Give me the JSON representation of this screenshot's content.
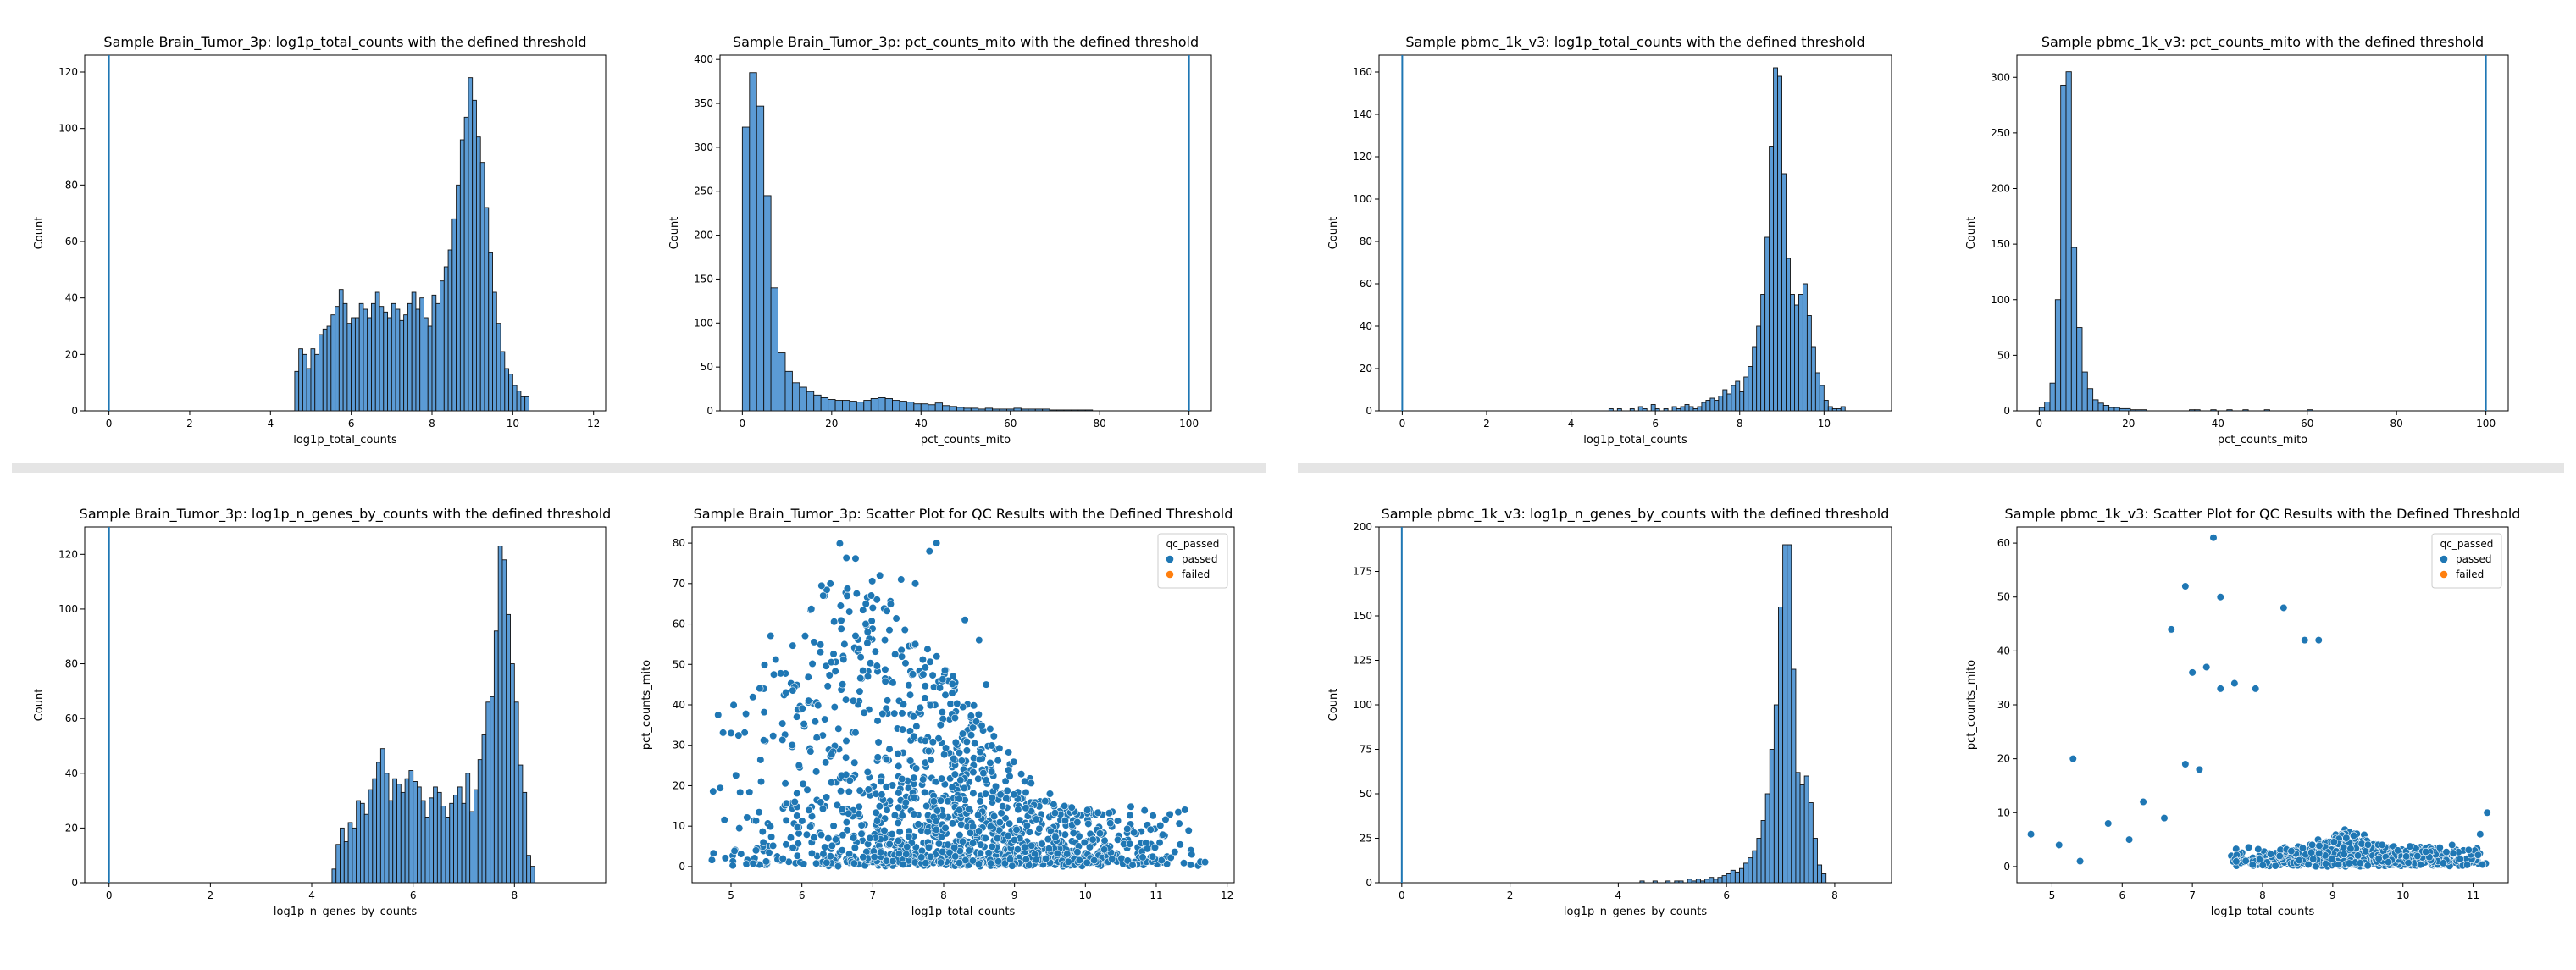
{
  "chart_data": [
    {
      "id": "c1",
      "type": "bar",
      "title": "Sample Brain_Tumor_3p: log1p_total_counts with the defined threshold",
      "xlabel": "log1p_total_counts",
      "ylabel": "Count",
      "xlim": [
        -0.6,
        12.3
      ],
      "ylim": [
        0,
        126
      ],
      "xticks": [
        0,
        2,
        4,
        6,
        8,
        10,
        12
      ],
      "yticks": [
        0,
        20,
        40,
        60,
        80,
        100,
        120
      ],
      "threshold": 0,
      "bins": {
        "start": 4.6,
        "width": 0.1
      },
      "values": [
        14,
        22,
        20,
        15,
        22,
        20,
        27,
        29,
        30,
        34,
        37,
        43,
        38,
        31,
        33,
        33,
        38,
        36,
        33,
        38,
        42,
        37,
        35,
        33,
        38,
        36,
        32,
        34,
        38,
        42,
        36,
        40,
        33,
        30,
        41,
        38,
        46,
        51,
        57,
        68,
        80,
        96,
        104,
        118,
        110,
        97,
        88,
        72,
        56,
        42,
        31,
        21,
        15,
        13,
        9,
        7,
        5,
        5
      ]
    },
    {
      "id": "c2",
      "type": "bar",
      "title": "Sample Brain_Tumor_3p: pct_counts_mito with the defined threshold",
      "xlabel": "pct_counts_mito",
      "ylabel": "Count",
      "xlim": [
        -5,
        105
      ],
      "ylim": [
        0,
        405
      ],
      "xticks": [
        0,
        20,
        40,
        60,
        80,
        100
      ],
      "yticks": [
        0,
        50,
        100,
        150,
        200,
        250,
        300,
        350,
        400
      ],
      "threshold": 100,
      "bins": {
        "start": 0,
        "width": 1.6
      },
      "values": [
        323,
        385,
        347,
        245,
        140,
        66,
        45,
        32,
        27,
        22,
        18,
        15,
        13,
        12,
        12,
        11,
        10,
        12,
        14,
        15,
        14,
        12,
        11,
        10,
        8,
        8,
        7,
        9,
        6,
        5,
        4,
        3,
        3,
        2,
        3,
        2,
        2,
        2,
        3,
        2,
        2,
        2,
        2,
        1,
        1,
        1,
        1,
        1,
        1
      ]
    },
    {
      "id": "c3",
      "type": "bar",
      "title": "Sample pbmc_1k_v3: log1p_total_counts with the defined threshold",
      "xlabel": "log1p_total_counts",
      "ylabel": "Count",
      "xlim": [
        -0.55,
        11.6
      ],
      "ylim": [
        0,
        168
      ],
      "xticks": [
        0,
        2,
        4,
        6,
        8,
        10
      ],
      "yticks": [
        0,
        20,
        40,
        60,
        80,
        100,
        120,
        140,
        160
      ],
      "threshold": 0,
      "bins": {
        "start": 4.9,
        "width": 0.1
      },
      "values": [
        1,
        0,
        1,
        0,
        0,
        1,
        0,
        2,
        1,
        0,
        3,
        1,
        0,
        1,
        0,
        2,
        1,
        2,
        3,
        2,
        1,
        2,
        4,
        5,
        6,
        5,
        7,
        10,
        8,
        12,
        14,
        9,
        16,
        21,
        30,
        40,
        55,
        82,
        125,
        162,
        158,
        112,
        72,
        55,
        50,
        55,
        60,
        45,
        30,
        18,
        12,
        5,
        2,
        1,
        1,
        2
      ]
    },
    {
      "id": "c4",
      "type": "bar",
      "title": "Sample pbmc_1k_v3: pct_counts_mito with the defined threshold",
      "xlabel": "pct_counts_mito",
      "ylabel": "Count",
      "xlim": [
        -5,
        105
      ],
      "ylim": [
        0,
        320
      ],
      "xticks": [
        0,
        20,
        40,
        60,
        80,
        100
      ],
      "yticks": [
        0,
        50,
        100,
        150,
        200,
        250,
        300
      ],
      "threshold": 100,
      "bins": {
        "start": 0,
        "width": 1.2
      },
      "values": [
        3,
        8,
        25,
        100,
        293,
        305,
        147,
        75,
        35,
        20,
        10,
        7,
        5,
        3,
        3,
        2,
        2,
        1,
        1,
        1,
        0,
        0,
        0,
        0,
        0,
        0,
        0,
        0,
        1,
        1,
        0,
        0,
        1,
        0,
        0,
        1,
        0,
        0,
        1,
        0,
        0,
        0,
        1,
        0,
        0,
        0,
        0,
        0,
        0,
        0,
        1
      ]
    },
    {
      "id": "c5",
      "type": "bar",
      "title": "Sample Brain_Tumor_3p: log1p_n_genes_by_counts with the defined threshold",
      "xlabel": "log1p_n_genes_by_counts",
      "ylabel": "Count",
      "xlim": [
        -0.48,
        9.8
      ],
      "ylim": [
        0,
        130
      ],
      "xticks": [
        0,
        2,
        4,
        6,
        8
      ],
      "yticks": [
        0,
        20,
        40,
        60,
        80,
        100,
        120
      ],
      "threshold": 0,
      "bins": {
        "start": 4.4,
        "width": 0.08
      },
      "values": [
        5,
        14,
        20,
        15,
        22,
        20,
        30,
        29,
        25,
        34,
        38,
        44,
        49,
        40,
        30,
        38,
        36,
        33,
        38,
        41,
        37,
        35,
        30,
        24,
        31,
        35,
        33,
        28,
        24,
        29,
        32,
        35,
        29,
        40,
        26,
        34,
        45,
        54,
        66,
        68,
        92,
        123,
        118,
        98,
        80,
        66,
        43,
        33,
        10,
        6
      ]
    },
    {
      "id": "c6",
      "type": "scatter",
      "title": "Sample Brain_Tumor_3p: Scatter Plot for QC Results with the Defined Threshold",
      "xlabel": "log1p_total_counts",
      "ylabel": "pct_counts_mito",
      "xlim": [
        4.45,
        12.1
      ],
      "ylim": [
        -4,
        84
      ],
      "xticks": [
        5,
        6,
        7,
        8,
        9,
        10,
        11,
        12
      ],
      "yticks": [
        0,
        10,
        20,
        30,
        40,
        50,
        60,
        70,
        80
      ],
      "legend": {
        "title": "qc_passed",
        "entries": [
          "passed",
          "failed"
        ],
        "placement": "top-right"
      },
      "cloud": {
        "seed": 7,
        "n": 1500,
        "xmin": 4.6,
        "xmax": 11.7,
        "xpeak": 6.6,
        "spread": [
          3.0,
          1.0,
          80.0,
          14.0
        ]
      },
      "outliers": [
        [
          7.9,
          80
        ],
        [
          7.8,
          78
        ],
        [
          7.6,
          70
        ],
        [
          7.1,
          72
        ],
        [
          7.4,
          71
        ],
        [
          7.0,
          64
        ],
        [
          6.3,
          67
        ],
        [
          8.3,
          61
        ],
        [
          6.9,
          60
        ],
        [
          8.5,
          56
        ],
        [
          6.6,
          55
        ],
        [
          7.6,
          55
        ],
        [
          8.6,
          45
        ],
        [
          5.0,
          33
        ],
        [
          9.5,
          18
        ],
        [
          11.5,
          3
        ]
      ]
    },
    {
      "id": "c7",
      "type": "bar",
      "title": "Sample pbmc_1k_v3: log1p_n_genes_by_counts with the defined threshold",
      "xlabel": "log1p_n_genes_by_counts",
      "ylabel": "Count",
      "xlim": [
        -0.42,
        9.05
      ],
      "ylim": [
        0,
        200
      ],
      "xticks": [
        0,
        2,
        4,
        6,
        8
      ],
      "yticks": [
        0,
        25,
        50,
        75,
        100,
        125,
        150,
        175,
        200
      ],
      "threshold": 0,
      "bins": {
        "start": 4.4,
        "width": 0.08
      },
      "values": [
        1,
        0,
        0,
        1,
        0,
        0,
        1,
        0,
        1,
        1,
        0,
        2,
        1,
        2,
        1,
        2,
        3,
        2,
        3,
        4,
        5,
        7,
        6,
        8,
        11,
        14,
        18,
        25,
        35,
        50,
        75,
        100,
        155,
        190,
        190,
        120,
        62,
        55,
        60,
        45,
        25,
        10,
        5
      ]
    },
    {
      "id": "c8",
      "type": "scatter",
      "title": "Sample pbmc_1k_v3: Scatter Plot for QC Results with the Defined Threshold",
      "xlabel": "log1p_total_counts",
      "ylabel": "pct_counts_mito",
      "xlim": [
        4.5,
        11.5
      ],
      "ylim": [
        -3,
        63
      ],
      "xticks": [
        5,
        6,
        7,
        8,
        9,
        10,
        11
      ],
      "yticks": [
        0,
        10,
        20,
        30,
        40,
        50,
        60
      ],
      "legend": {
        "title": "qc_passed",
        "entries": [
          "passed",
          "failed"
        ],
        "placement": "top-right"
      },
      "cloud": {
        "seed": 11,
        "n": 1000,
        "xmin": 7.5,
        "xmax": 11.2,
        "xpeak": 9.2,
        "spread": [
          0.6,
          0.5,
          6.0,
          2.5
        ]
      },
      "outliers": [
        [
          7.3,
          61
        ],
        [
          6.9,
          52
        ],
        [
          7.4,
          50
        ],
        [
          8.3,
          48
        ],
        [
          6.7,
          44
        ],
        [
          8.6,
          42
        ],
        [
          8.8,
          42
        ],
        [
          7.2,
          37
        ],
        [
          7.0,
          36
        ],
        [
          7.6,
          34
        ],
        [
          7.4,
          33
        ],
        [
          7.9,
          33
        ],
        [
          5.3,
          20
        ],
        [
          4.7,
          6
        ],
        [
          5.1,
          4
        ],
        [
          5.4,
          1
        ],
        [
          5.8,
          8
        ],
        [
          6.1,
          5
        ],
        [
          6.3,
          12
        ],
        [
          6.6,
          9
        ],
        [
          7.1,
          18
        ],
        [
          6.9,
          19
        ],
        [
          11.2,
          10
        ],
        [
          11.1,
          6
        ],
        [
          10.7,
          4
        ]
      ]
    }
  ],
  "colors": {
    "bar": "#5b9bd5",
    "bar_edge": "#111111",
    "point": "#1f77b4",
    "failed": "#ff7f0e",
    "threshold": "#1f77b4"
  }
}
